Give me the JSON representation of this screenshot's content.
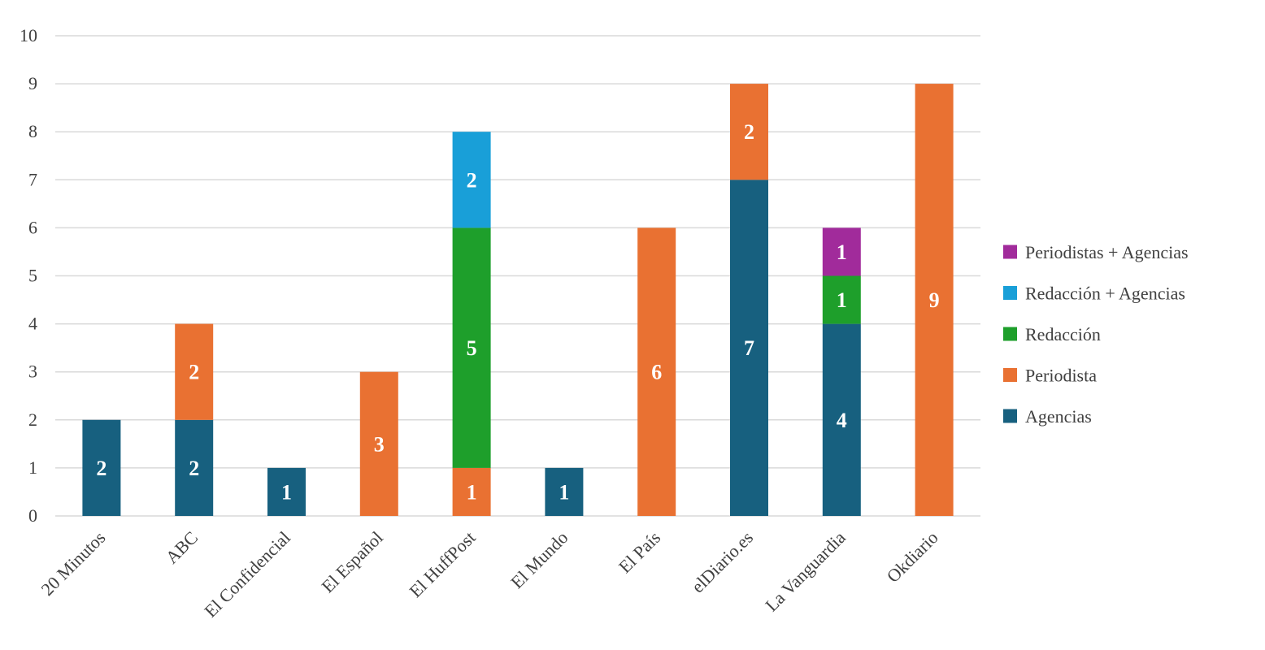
{
  "chart_data": {
    "type": "bar",
    "stacked": true,
    "title": "",
    "xlabel": "",
    "ylabel": "",
    "ylim": [
      0,
      10
    ],
    "yticks": [
      "0",
      "1",
      "2",
      "3",
      "4",
      "5",
      "6",
      "7",
      "8",
      "9",
      "10"
    ],
    "grid": true,
    "legend_position": "right",
    "categories": [
      "20 Minutos",
      "ABC",
      "El Confidencial",
      "El Español",
      "El HuffPost",
      "El Mundo",
      "El País",
      "elDiario.es",
      "La Vanguardia",
      "Okdiario"
    ],
    "series": [
      {
        "name": "Agencias",
        "color": "#17607f",
        "values": [
          2,
          2,
          1,
          0,
          0,
          1,
          0,
          7,
          4,
          0
        ]
      },
      {
        "name": "Periodista",
        "color": "#e97132",
        "values": [
          0,
          2,
          0,
          3,
          1,
          0,
          6,
          2,
          0,
          9
        ]
      },
      {
        "name": "Redacción",
        "color": "#1e9f2b",
        "values": [
          0,
          0,
          0,
          0,
          5,
          0,
          0,
          0,
          1,
          0
        ]
      },
      {
        "name": "Redacción + Agencias",
        "color": "#199fd8",
        "values": [
          0,
          0,
          0,
          0,
          2,
          0,
          0,
          0,
          0,
          0
        ]
      },
      {
        "name": "Periodistas + Agencias",
        "color": "#a12b9b",
        "values": [
          0,
          0,
          0,
          0,
          0,
          0,
          0,
          0,
          1,
          0
        ]
      }
    ],
    "legend_order": [
      "Periodistas + Agencias",
      "Redacción + Agencias",
      "Redacción",
      "Periodista",
      "Agencias"
    ]
  }
}
